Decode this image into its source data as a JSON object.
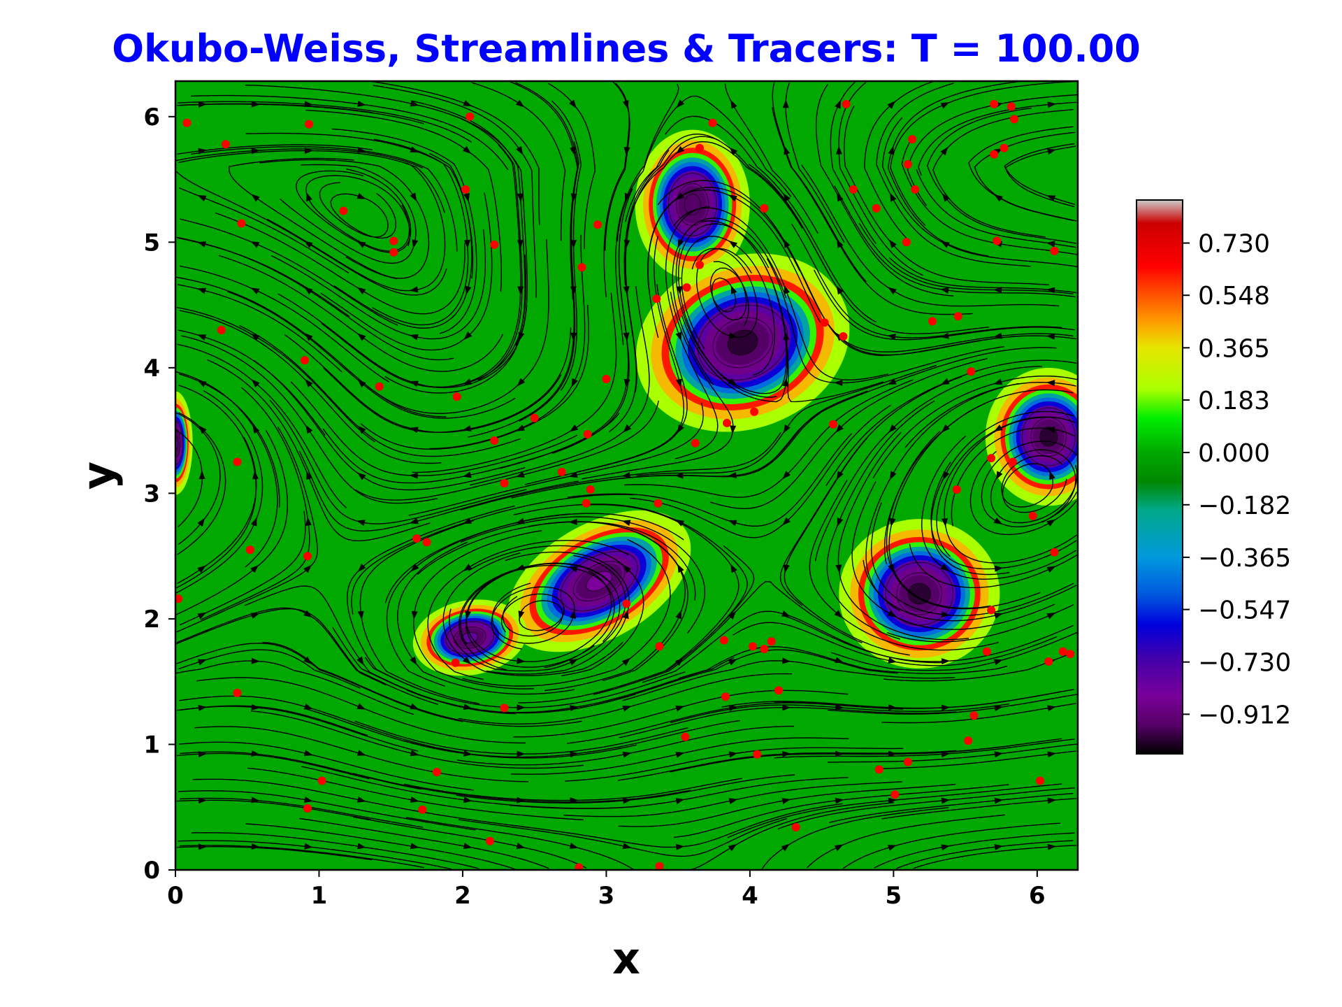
{
  "chart_data": {
    "type": "heatmap",
    "title": "Okubo-Weiss, Streamlines & Tracers: T = 100.00",
    "title_color": "#0000ff",
    "xlabel": "x",
    "ylabel": "y",
    "xlim": [
      0,
      6.283
    ],
    "ylim": [
      0,
      6.283
    ],
    "xticks": [
      "0",
      "1",
      "2",
      "3",
      "4",
      "5",
      "6"
    ],
    "yticks": [
      "0",
      "1",
      "2",
      "3",
      "4",
      "5",
      "6"
    ],
    "colormap": "nipy_spectral",
    "background_value": 0.0,
    "colorbar": {
      "ticks": [
        "0.730",
        "0.548",
        "0.365",
        "0.183",
        "0.000",
        "−0.182",
        "−0.365",
        "−0.547",
        "−0.730",
        "−0.912"
      ],
      "tick_values": [
        0.73,
        0.548,
        0.365,
        0.183,
        0.0,
        -0.182,
        -0.365,
        -0.547,
        -0.73,
        -0.912
      ],
      "range": [
        -1.05,
        0.88
      ],
      "stops": [
        {
          "v": 0.88,
          "color": "#cccccc"
        },
        {
          "v": 0.8,
          "color": "#cc0000"
        },
        {
          "v": 0.65,
          "color": "#ff0000"
        },
        {
          "v": 0.46,
          "color": "#ff9900"
        },
        {
          "v": 0.365,
          "color": "#e6e600"
        },
        {
          "v": 0.22,
          "color": "#aaff00"
        },
        {
          "v": 0.12,
          "color": "#00ee00"
        },
        {
          "v": 0.0,
          "color": "#00a800"
        },
        {
          "v": -0.1,
          "color": "#008800"
        },
        {
          "v": -0.2,
          "color": "#00a888"
        },
        {
          "v": -0.365,
          "color": "#0099dd"
        },
        {
          "v": -0.5,
          "color": "#0055dd"
        },
        {
          "v": -0.6,
          "color": "#0000dd"
        },
        {
          "v": -0.72,
          "color": "#4400aa"
        },
        {
          "v": -0.85,
          "color": "#7a0099"
        },
        {
          "v": -0.95,
          "color": "#550066"
        },
        {
          "v": -1.05,
          "color": "#000000"
        }
      ]
    },
    "vortices": [
      {
        "x": 3.6,
        "y": 5.3,
        "rx": 0.2,
        "ry": 0.26,
        "angle": 0,
        "core": -0.95
      },
      {
        "x": 3.95,
        "y": 4.2,
        "rx": 0.38,
        "ry": 0.3,
        "angle": 20,
        "core": -1.0
      },
      {
        "x": 6.08,
        "y": 3.45,
        "rx": 0.22,
        "ry": 0.24,
        "angle": 0,
        "core": -1.0
      },
      {
        "x": 2.95,
        "y": 2.3,
        "rx": 0.35,
        "ry": 0.2,
        "angle": 30,
        "core": -0.85
      },
      {
        "x": 2.05,
        "y": 1.85,
        "rx": 0.2,
        "ry": 0.13,
        "angle": 10,
        "core": -0.8
      },
      {
        "x": 5.18,
        "y": 2.2,
        "rx": 0.28,
        "ry": 0.26,
        "angle": 0,
        "core": -1.0
      },
      {
        "x": 0.0,
        "y": 3.4,
        "rx": 0.06,
        "ry": 0.18,
        "angle": 0,
        "core": -0.8
      }
    ],
    "streamline_color": "#000000",
    "tracer_color": "#ff0000",
    "tracers": [
      [
        0.08,
        5.95
      ],
      [
        0.35,
        5.78
      ],
      [
        0.93,
        5.94
      ],
      [
        2.05,
        6.0
      ],
      [
        3.65,
        5.75
      ],
      [
        3.74,
        5.95
      ],
      [
        4.67,
        6.1
      ],
      [
        5.7,
        6.1
      ],
      [
        5.82,
        6.08
      ],
      [
        5.84,
        5.98
      ],
      [
        5.13,
        5.82
      ],
      [
        5.1,
        5.62
      ],
      [
        5.7,
        5.7
      ],
      [
        5.77,
        5.75
      ],
      [
        0.46,
        5.15
      ],
      [
        1.17,
        5.25
      ],
      [
        2.02,
        5.42
      ],
      [
        1.52,
        5.01
      ],
      [
        1.52,
        4.92
      ],
      [
        2.22,
        4.98
      ],
      [
        2.94,
        5.14
      ],
      [
        2.83,
        4.8
      ],
      [
        3.65,
        4.82
      ],
      [
        4.1,
        5.27
      ],
      [
        4.88,
        5.27
      ],
      [
        4.72,
        5.42
      ],
      [
        5.15,
        5.42
      ],
      [
        5.09,
        5.0
      ],
      [
        5.72,
        5.01
      ],
      [
        6.12,
        4.93
      ],
      [
        0.32,
        4.3
      ],
      [
        0.9,
        4.06
      ],
      [
        1.42,
        3.85
      ],
      [
        1.96,
        3.77
      ],
      [
        3.0,
        3.91
      ],
      [
        3.56,
        4.64
      ],
      [
        3.35,
        4.55
      ],
      [
        4.52,
        4.36
      ],
      [
        4.65,
        4.25
      ],
      [
        5.27,
        4.37
      ],
      [
        5.45,
        4.41
      ],
      [
        5.54,
        3.97
      ],
      [
        0.43,
        3.25
      ],
      [
        2.5,
        3.6
      ],
      [
        2.87,
        3.47
      ],
      [
        2.22,
        3.42
      ],
      [
        3.62,
        3.4
      ],
      [
        3.84,
        3.56
      ],
      [
        4.03,
        3.65
      ],
      [
        4.58,
        3.55
      ],
      [
        5.68,
        3.28
      ],
      [
        5.83,
        3.25
      ],
      [
        2.29,
        3.08
      ],
      [
        2.69,
        3.17
      ],
      [
        2.89,
        3.03
      ],
      [
        2.86,
        2.92
      ],
      [
        3.36,
        2.92
      ],
      [
        5.44,
        3.03
      ],
      [
        5.97,
        2.82
      ],
      [
        0.52,
        2.55
      ],
      [
        0.92,
        2.5
      ],
      [
        1.68,
        2.64
      ],
      [
        1.75,
        2.61
      ],
      [
        6.12,
        2.53
      ],
      [
        0.02,
        2.16
      ],
      [
        3.14,
        2.12
      ],
      [
        5.68,
        2.07
      ],
      [
        1.95,
        1.65
      ],
      [
        3.37,
        1.78
      ],
      [
        3.82,
        1.83
      ],
      [
        4.02,
        1.78
      ],
      [
        4.1,
        1.76
      ],
      [
        4.15,
        1.82
      ],
      [
        5.65,
        1.74
      ],
      [
        6.08,
        1.66
      ],
      [
        6.18,
        1.74
      ],
      [
        6.23,
        1.72
      ],
      [
        0.43,
        1.41
      ],
      [
        2.29,
        1.29
      ],
      [
        3.83,
        1.38
      ],
      [
        4.2,
        1.43
      ],
      [
        3.55,
        1.06
      ],
      [
        5.56,
        1.23
      ],
      [
        5.52,
        1.03
      ],
      [
        4.05,
        0.92
      ],
      [
        5.1,
        0.86
      ],
      [
        4.9,
        0.8
      ],
      [
        6.02,
        0.71
      ],
      [
        1.02,
        0.71
      ],
      [
        1.82,
        0.78
      ],
      [
        0.92,
        0.49
      ],
      [
        1.72,
        0.48
      ],
      [
        5.01,
        0.6
      ],
      [
        2.19,
        0.23
      ],
      [
        4.32,
        0.34
      ],
      [
        2.81,
        0.02
      ],
      [
        3.37,
        0.03
      ]
    ]
  }
}
